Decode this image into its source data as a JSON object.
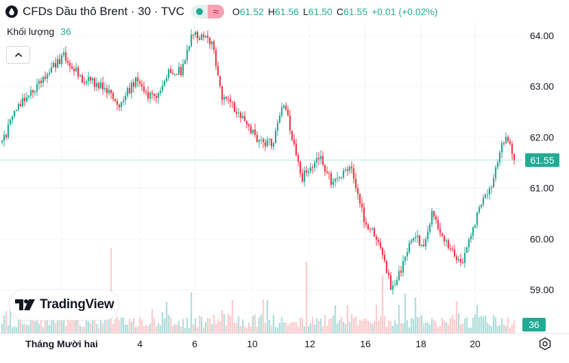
{
  "header": {
    "title": "CFDs Dầu thô Brent · 30 · TVC",
    "ohlc": {
      "o_label": "O",
      "o_value": "61.52",
      "h_label": "H",
      "h_value": "61.56",
      "l_label": "L",
      "l_value": "61.50",
      "c_label": "C",
      "c_value": "61.55",
      "change": "+0.01 (+0.02%)"
    },
    "wave_icon": "≈"
  },
  "volume": {
    "label": "Khối lượng",
    "value": "36"
  },
  "logo": {
    "text": "TradingView"
  },
  "colors": {
    "up": "#22ab94",
    "down": "#f23645",
    "vol_up": "#b2dfdb",
    "vol_down": "#facdcf",
    "grid": "#f0f3fa",
    "price_tag": "#22ab94"
  },
  "chart_data": {
    "type": "candlestick",
    "symbol": "CFDs Dầu thô Brent",
    "interval": "30",
    "exchange": "TVC",
    "price_axis": {
      "ylim": [
        58.4,
        64.45
      ],
      "ticks": [
        "64.00",
        "63.00",
        "62.00",
        "61.00",
        "60.00",
        "59.00"
      ]
    },
    "x_ticks": [
      "Tháng Mười hai",
      "4",
      "6",
      "10",
      "12",
      "16",
      "18",
      "20"
    ],
    "last_price": "61.55",
    "last_volume": "36",
    "price_path": [
      {
        "t": 0,
        "p": 61.9
      },
      {
        "t": 0.03,
        "p": 62.6
      },
      {
        "t": 0.06,
        "p": 62.9
      },
      {
        "t": 0.09,
        "p": 63.3
      },
      {
        "t": 0.12,
        "p": 63.6
      },
      {
        "t": 0.155,
        "p": 63.15
      },
      {
        "t": 0.2,
        "p": 63.0
      },
      {
        "t": 0.225,
        "p": 62.6
      },
      {
        "t": 0.26,
        "p": 63.1
      },
      {
        "t": 0.3,
        "p": 62.7
      },
      {
        "t": 0.325,
        "p": 63.3
      },
      {
        "t": 0.35,
        "p": 63.3
      },
      {
        "t": 0.37,
        "p": 64.0
      },
      {
        "t": 0.41,
        "p": 63.9
      },
      {
        "t": 0.43,
        "p": 62.8
      },
      {
        "t": 0.47,
        "p": 62.4
      },
      {
        "t": 0.5,
        "p": 61.9
      },
      {
        "t": 0.53,
        "p": 61.9
      },
      {
        "t": 0.55,
        "p": 62.7
      },
      {
        "t": 0.585,
        "p": 61.2
      },
      {
        "t": 0.62,
        "p": 61.6
      },
      {
        "t": 0.645,
        "p": 61.1
      },
      {
        "t": 0.68,
        "p": 61.4
      },
      {
        "t": 0.71,
        "p": 60.3
      },
      {
        "t": 0.74,
        "p": 59.9
      },
      {
        "t": 0.76,
        "p": 59.0
      },
      {
        "t": 0.775,
        "p": 59.3
      },
      {
        "t": 0.805,
        "p": 60.1
      },
      {
        "t": 0.82,
        "p": 59.8
      },
      {
        "t": 0.84,
        "p": 60.5
      },
      {
        "t": 0.88,
        "p": 59.7
      },
      {
        "t": 0.9,
        "p": 59.6
      },
      {
        "t": 0.935,
        "p": 60.7
      },
      {
        "t": 0.955,
        "p": 61.0
      },
      {
        "t": 0.975,
        "p": 61.9
      },
      {
        "t": 0.99,
        "p": 62.0
      },
      {
        "t": 1.0,
        "p": 61.55
      }
    ]
  }
}
